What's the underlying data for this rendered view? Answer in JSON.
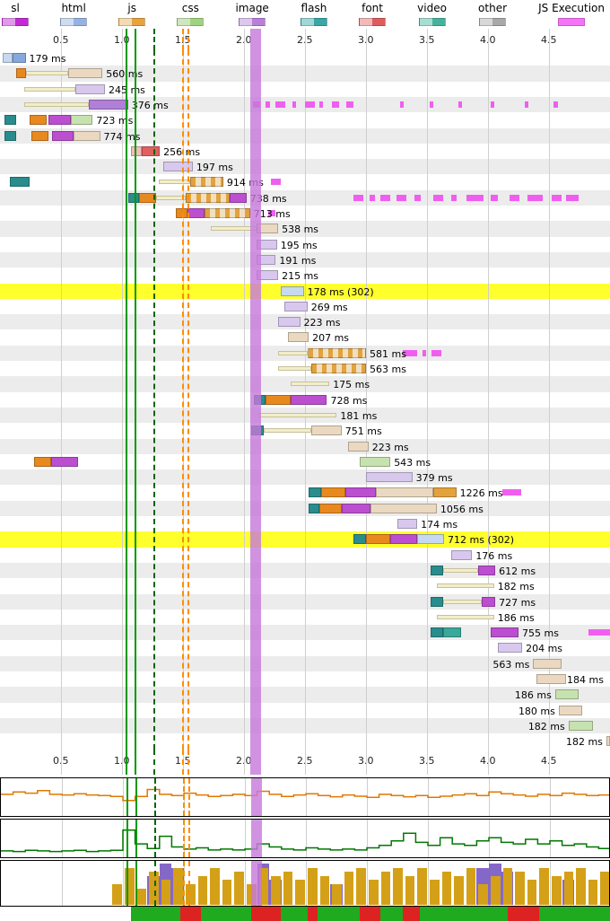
{
  "legend": {
    "items": [
      {
        "key": "ssl",
        "label": "sl",
        "light": "#e09ae8",
        "dark": "#c32ad4"
      },
      {
        "key": "html",
        "label": "html",
        "light": "#cfdcf0",
        "dark": "#94b3e4"
      },
      {
        "key": "js",
        "label": "js",
        "light": "#f3dbb2",
        "dark": "#e8a33d"
      },
      {
        "key": "css",
        "label": "css",
        "light": "#cfe6c0",
        "dark": "#9ed47e"
      },
      {
        "key": "image",
        "label": "image",
        "light": "#ddc7ee",
        "dark": "#b97fd9"
      },
      {
        "key": "flash",
        "label": "flash",
        "light": "#9fd8d8",
        "dark": "#3aa6a6"
      },
      {
        "key": "font",
        "label": "font",
        "light": "#f3b8b8",
        "dark": "#e05c5c"
      },
      {
        "key": "video",
        "label": "video",
        "light": "#a8ded2",
        "dark": "#45b39b"
      },
      {
        "key": "other",
        "label": "other",
        "light": "#d8d8d8",
        "dark": "#a8a8a8"
      },
      {
        "key": "js-execution",
        "label": "JS Execution",
        "light": "#f473f8",
        "dark": "#f473f8"
      }
    ]
  },
  "colors": {
    "dns": "#2a8c8c",
    "con": "#e8891f",
    "ssl": "#bb4fd0",
    "wait": "#f2eecb",
    "html_l": "#c6d9f1",
    "html_d": "#86a9dd",
    "beige": "#ead9c0",
    "js_stripe_light": "#f2dfc0",
    "js_stripe_dark": "#e2a23c",
    "js_d": "#e2a23c",
    "img_l": "#d8c8ee",
    "img_d": "#b07fd8",
    "css": "#c6e2ae",
    "font_l": "#f2bdbd",
    "font_d": "#e06060",
    "video": "#3aa89a",
    "js_exec": "#f05ef0"
  },
  "chart_data": {
    "type": "waterfall",
    "time_axis": {
      "unit": "seconds",
      "ticks": [
        "0.5",
        "1.0",
        "1.5",
        "2.0",
        "2.5",
        "3.0",
        "3.5",
        "4.0",
        "4.5"
      ],
      "range": [
        0,
        5
      ]
    },
    "markers": {
      "lines": [
        {
          "name": "start-render",
          "t": 1.03,
          "style": "solid-green"
        },
        {
          "name": "first-paint",
          "t": 1.1,
          "style": "solid-green"
        },
        {
          "name": "dom-content-loaded",
          "t": 1.26,
          "style": "dashed-green"
        },
        {
          "name": "on-load-start",
          "t": 1.49,
          "style": "dashed-orange"
        },
        {
          "name": "on-load-end",
          "t": 1.54,
          "style": "dashed-orange"
        }
      ],
      "band": {
        "name": "largest-contentful-paint",
        "t0": 2.05,
        "t1": 2.14
      }
    },
    "rows": [
      {
        "label": "179 ms",
        "segments": [
          [
            0.02,
            0.1,
            "html_l"
          ],
          [
            0.1,
            0.21,
            "html_d"
          ]
        ]
      },
      {
        "label": "560 ms",
        "segments": [
          [
            0.13,
            0.21,
            "con"
          ],
          [
            0.21,
            0.56,
            "wait"
          ],
          [
            0.56,
            0.84,
            "beige"
          ]
        ]
      },
      {
        "label": "245 ms",
        "segments": [
          [
            0.2,
            0.62,
            "wait"
          ],
          [
            0.62,
            0.86,
            "img_l"
          ]
        ]
      },
      {
        "label": "376 ms",
        "segments": [
          [
            0.2,
            0.73,
            "wait"
          ],
          [
            0.73,
            1.05,
            "img_d"
          ]
        ],
        "js_exec": [
          [
            2.07,
            2.13
          ],
          [
            2.18,
            2.21
          ],
          [
            2.26,
            2.34
          ],
          [
            2.4,
            2.43
          ],
          [
            2.5,
            2.58
          ],
          [
            2.62,
            2.65
          ],
          [
            2.72,
            2.78
          ],
          [
            2.84,
            2.9
          ],
          [
            3.28,
            3.31
          ],
          [
            3.52,
            3.55
          ],
          [
            3.76,
            3.79
          ],
          [
            4.02,
            4.05
          ],
          [
            4.3,
            4.33
          ],
          [
            4.54,
            4.57
          ]
        ]
      },
      {
        "label": "723 ms",
        "segments": [
          [
            0.04,
            0.13,
            "dns"
          ],
          [
            0.24,
            0.38,
            "con"
          ],
          [
            0.4,
            0.58,
            "ssl"
          ],
          [
            0.58,
            0.76,
            "css"
          ]
        ]
      },
      {
        "label": "774 ms",
        "segments": [
          [
            0.04,
            0.13,
            "dns"
          ],
          [
            0.26,
            0.4,
            "con"
          ],
          [
            0.43,
            0.6,
            "ssl"
          ],
          [
            0.6,
            0.82,
            "beige"
          ]
        ]
      },
      {
        "label": "256 ms",
        "segments": [
          [
            1.07,
            1.16,
            "font_l"
          ],
          [
            1.16,
            1.31,
            "font_d"
          ]
        ]
      },
      {
        "label": "197 ms",
        "segments": [
          [
            1.34,
            1.58,
            "img_l"
          ]
        ]
      },
      {
        "label": "914 ms",
        "segments": [
          [
            0.08,
            0.24,
            "dns"
          ],
          [
            1.3,
            1.56,
            "wait"
          ],
          [
            1.56,
            1.83,
            "js_stripe"
          ]
        ],
        "js_exec": [
          [
            2.22,
            2.3
          ]
        ]
      },
      {
        "label": "738 ms",
        "segments": [
          [
            1.05,
            1.14,
            "dns"
          ],
          [
            1.14,
            1.28,
            "con"
          ],
          [
            1.28,
            1.52,
            "wait"
          ],
          [
            1.52,
            1.88,
            "js_stripe"
          ],
          [
            1.88,
            2.02,
            "ssl"
          ]
        ],
        "js_exec": [
          [
            2.9,
            2.98
          ],
          [
            3.03,
            3.07
          ],
          [
            3.12,
            3.2
          ],
          [
            3.25,
            3.33
          ],
          [
            3.4,
            3.45
          ],
          [
            3.55,
            3.63
          ],
          [
            3.7,
            3.74
          ],
          [
            3.82,
            3.96
          ],
          [
            4.02,
            4.08
          ],
          [
            4.18,
            4.26
          ],
          [
            4.32,
            4.45
          ],
          [
            4.52,
            4.6
          ],
          [
            4.64,
            4.74
          ]
        ]
      },
      {
        "label": "713 ms",
        "segments": [
          [
            1.44,
            1.54,
            "con"
          ],
          [
            1.54,
            1.68,
            "ssl"
          ],
          [
            1.68,
            2.05,
            "js_stripe"
          ]
        ],
        "js_exec": [
          [
            2.2,
            2.26
          ]
        ]
      },
      {
        "label": "538 ms",
        "segments": [
          [
            1.73,
            2.1,
            "wait"
          ],
          [
            2.1,
            2.28,
            "beige"
          ]
        ]
      },
      {
        "label": "195 ms",
        "segments": [
          [
            2.1,
            2.27,
            "img_l"
          ]
        ]
      },
      {
        "label": "191 ms",
        "segments": [
          [
            2.1,
            2.26,
            "img_l"
          ]
        ]
      },
      {
        "label": "215 ms",
        "segments": [
          [
            2.1,
            2.28,
            "img_l"
          ]
        ]
      },
      {
        "label": "178 ms (302)",
        "highlight": true,
        "segments": [
          [
            2.3,
            2.49,
            "html_l"
          ]
        ]
      },
      {
        "label": "269 ms",
        "segments": [
          [
            2.33,
            2.52,
            "img_l"
          ]
        ]
      },
      {
        "label": "223 ms",
        "segments": [
          [
            2.28,
            2.46,
            "img_l"
          ]
        ]
      },
      {
        "label": "207 ms",
        "segments": [
          [
            2.36,
            2.53,
            "beige"
          ]
        ]
      },
      {
        "label": "581 ms",
        "segments": [
          [
            2.28,
            2.52,
            "wait"
          ],
          [
            2.52,
            3.0,
            "js_stripe"
          ]
        ],
        "js_exec": [
          [
            3.3,
            3.42
          ],
          [
            3.46,
            3.49
          ],
          [
            3.54,
            3.62
          ]
        ]
      },
      {
        "label": "563 ms",
        "segments": [
          [
            2.28,
            2.55,
            "wait"
          ],
          [
            2.55,
            3.0,
            "js_stripe"
          ]
        ]
      },
      {
        "label": "175 ms",
        "segments": [
          [
            2.38,
            2.7,
            "wait"
          ]
        ]
      },
      {
        "label": "728 ms",
        "segments": [
          [
            2.08,
            2.18,
            "dns"
          ],
          [
            2.18,
            2.38,
            "con"
          ],
          [
            2.38,
            2.68,
            "ssl"
          ]
        ]
      },
      {
        "label": "181 ms",
        "segments": [
          [
            2.12,
            2.76,
            "wait"
          ]
        ]
      },
      {
        "label": "751 ms",
        "segments": [
          [
            2.06,
            2.16,
            "dns"
          ],
          [
            2.16,
            2.55,
            "wait"
          ],
          [
            2.55,
            2.8,
            "beige"
          ]
        ]
      },
      {
        "label": "223 ms",
        "segments": [
          [
            2.85,
            3.02,
            "beige"
          ]
        ]
      },
      {
        "label": "543 ms",
        "segments": [
          [
            0.28,
            0.42,
            "con"
          ],
          [
            0.42,
            0.64,
            "ssl"
          ],
          [
            2.95,
            3.2,
            "css"
          ]
        ]
      },
      {
        "label": "379 ms",
        "segments": [
          [
            3.0,
            3.38,
            "img_l"
          ]
        ]
      },
      {
        "label": "1226 ms",
        "segments": [
          [
            2.53,
            2.63,
            "dns"
          ],
          [
            2.63,
            2.83,
            "con"
          ],
          [
            2.83,
            3.08,
            "ssl"
          ],
          [
            3.08,
            3.55,
            "beige"
          ],
          [
            3.55,
            3.74,
            "js_d"
          ]
        ],
        "js_exec": [
          [
            4.12,
            4.27
          ]
        ]
      },
      {
        "label": "1056 ms",
        "segments": [
          [
            2.53,
            2.62,
            "dns"
          ],
          [
            2.62,
            2.8,
            "con"
          ],
          [
            2.8,
            3.04,
            "ssl"
          ],
          [
            3.04,
            3.58,
            "beige"
          ]
        ]
      },
      {
        "label": "174 ms",
        "segments": [
          [
            3.26,
            3.42,
            "img_l"
          ]
        ]
      },
      {
        "label": "712 ms (302)",
        "highlight": true,
        "segments": [
          [
            2.9,
            3.0,
            "dns"
          ],
          [
            3.0,
            3.2,
            "con"
          ],
          [
            3.2,
            3.42,
            "ssl"
          ],
          [
            3.42,
            3.64,
            "html_l"
          ]
        ]
      },
      {
        "label": "176 ms",
        "segments": [
          [
            3.7,
            3.87,
            "img_l"
          ]
        ]
      },
      {
        "label": "612 ms",
        "segments": [
          [
            3.53,
            3.63,
            "dns"
          ],
          [
            3.63,
            3.92,
            "wait"
          ],
          [
            3.92,
            4.06,
            "ssl"
          ]
        ]
      },
      {
        "label": "182 ms",
        "segments": [
          [
            3.58,
            4.05,
            "wait"
          ]
        ]
      },
      {
        "label": "727 ms",
        "segments": [
          [
            3.53,
            3.63,
            "dns"
          ],
          [
            3.63,
            3.95,
            "wait"
          ],
          [
            3.95,
            4.06,
            "ssl"
          ]
        ]
      },
      {
        "label": "186 ms",
        "segments": [
          [
            3.58,
            4.05,
            "wait"
          ]
        ]
      },
      {
        "label": "755 ms",
        "segments": [
          [
            3.53,
            3.63,
            "dns"
          ],
          [
            3.63,
            3.78,
            "video"
          ],
          [
            4.02,
            4.25,
            "ssl"
          ]
        ],
        "js_exec": [
          [
            4.82,
            5.0
          ]
        ]
      },
      {
        "label": "204 ms",
        "segments": [
          [
            4.08,
            4.28,
            "img_l"
          ]
        ]
      },
      {
        "label": "563 ms",
        "label_side": "left",
        "segments": [
          [
            4.37,
            4.6,
            "beige"
          ]
        ]
      },
      {
        "label": "184 ms",
        "segments": [
          [
            4.4,
            4.64,
            "beige"
          ]
        ]
      },
      {
        "label": "186 ms",
        "label_side": "left",
        "segments": [
          [
            4.55,
            4.74,
            "css"
          ]
        ]
      },
      {
        "label": "180 ms",
        "label_side": "left",
        "segments": [
          [
            4.58,
            4.77,
            "beige"
          ]
        ]
      },
      {
        "label": "182 ms",
        "label_side": "left",
        "segments": [
          [
            4.66,
            4.86,
            "css"
          ]
        ]
      },
      {
        "label": "182 ms",
        "label_side": "left",
        "segments": [
          [
            4.97,
            5.0,
            "beige"
          ]
        ]
      }
    ],
    "bandwidth": {
      "color": "#e07800",
      "values": [
        62,
        70,
        66,
        74,
        62,
        60,
        64,
        60,
        58,
        55,
        42,
        55,
        78,
        62,
        58,
        66,
        60,
        55,
        58,
        62,
        58,
        72,
        62,
        55,
        60,
        64,
        58,
        54,
        60,
        56,
        52,
        62,
        58,
        54,
        58,
        52,
        56,
        60,
        64,
        58,
        70,
        64,
        60,
        56,
        62,
        58,
        66,
        62,
        58,
        60
      ]
    },
    "cpu": {
      "color": "#007700",
      "values": [
        12,
        10,
        14,
        12,
        10,
        12,
        14,
        10,
        12,
        14,
        80,
        35,
        20,
        60,
        25,
        18,
        22,
        15,
        18,
        15,
        18,
        35,
        25,
        18,
        15,
        22,
        18,
        15,
        18,
        15,
        22,
        30,
        45,
        70,
        40,
        30,
        55,
        35,
        30,
        45,
        55,
        40,
        35,
        50,
        35,
        45,
        30,
        35,
        25,
        20
      ]
    },
    "network": {
      "gold": "#d4a017",
      "purple": "#8468c8",
      "gold_values": [
        0,
        0,
        0,
        0,
        0,
        0,
        0,
        0,
        0,
        50,
        90,
        40,
        80,
        60,
        90,
        50,
        70,
        90,
        60,
        80,
        50,
        90,
        70,
        80,
        60,
        90,
        70,
        50,
        80,
        90,
        60,
        80,
        90,
        70,
        90,
        60,
        80,
        70,
        90,
        50,
        70,
        90,
        80,
        60,
        90,
        70,
        80,
        90,
        60,
        80
      ],
      "purple_values": [
        0,
        0,
        0,
        0,
        0,
        0,
        0,
        0,
        0,
        0,
        0,
        0,
        70,
        100,
        90,
        0,
        0,
        0,
        0,
        0,
        0,
        100,
        60,
        0,
        0,
        0,
        0,
        50,
        0,
        0,
        0,
        0,
        0,
        0,
        0,
        0,
        0,
        0,
        0,
        90,
        100,
        80,
        0,
        0,
        0,
        0,
        60,
        0,
        0,
        0
      ]
    },
    "activity": {
      "start": 1.07,
      "green": "#1faa1f",
      "red": "#dd2222",
      "red_segments": [
        [
          1.48,
          1.65
        ],
        [
          2.06,
          2.3
        ],
        [
          2.52,
          2.6
        ],
        [
          2.95,
          3.12
        ],
        [
          3.3,
          3.44
        ],
        [
          4.16,
          4.42
        ]
      ]
    }
  }
}
